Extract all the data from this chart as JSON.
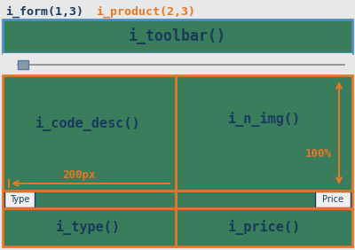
{
  "bg_color": "#e8e8e8",
  "cell_bg": "#3a7d5c",
  "toolbar_bg": "#3a7d5c",
  "blue": "#4a90c4",
  "orange": "#e87722",
  "dark_blue": "#1a3a5c",
  "gray": "#999999",
  "slider_gray": "#8899aa",
  "white": "#f0f0f0",
  "label_form": "i_form(1,3)",
  "label_product": "i_product(2,3)",
  "label_toolbar": "i_toolbar()",
  "label_code_desc": "i_code_desc()",
  "label_n_img": "i_n_img()",
  "label_type_fn": "i_type()",
  "label_price_fn": "i_price()",
  "label_200px": "200px",
  "label_100pct": "100%",
  "label_type": "Type",
  "label_price": "Price",
  "fig_w": 4.0,
  "fig_h": 2.82,
  "dpi": 100
}
